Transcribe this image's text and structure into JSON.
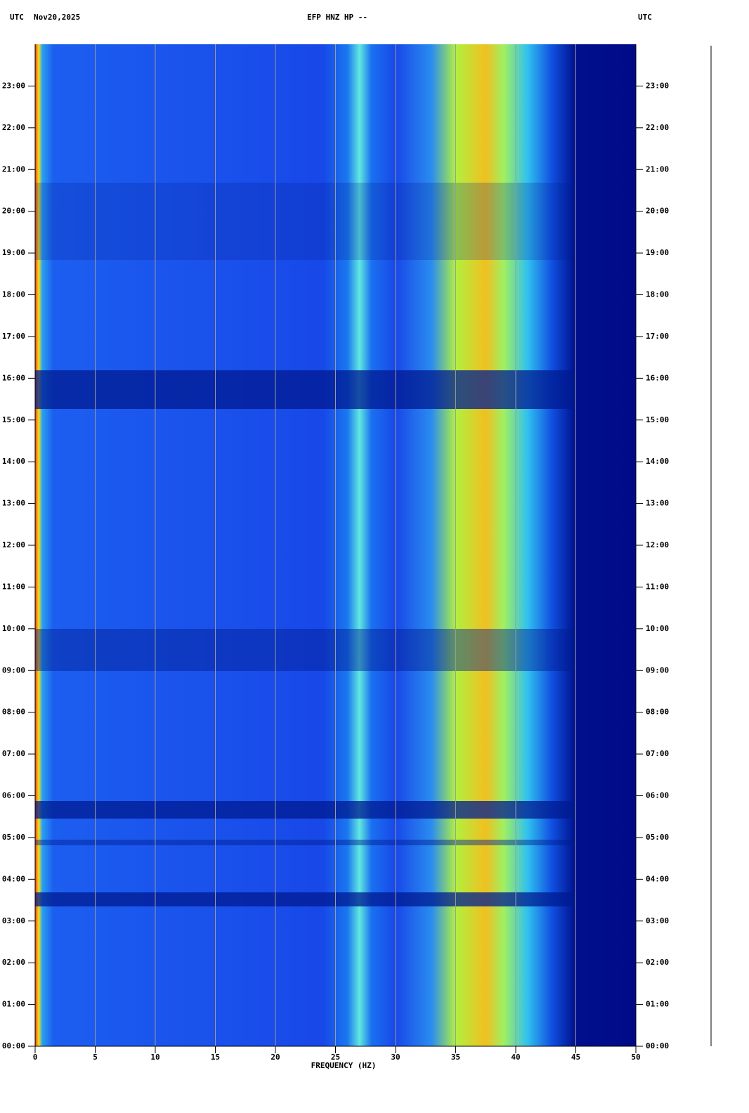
{
  "chart_data": {
    "type": "spectrogram",
    "title": "EFP HNZ HP --",
    "timezone_left": "UTC",
    "date": "Nov20,2025",
    "timezone_right": "UTC",
    "x_label": "FREQUENCY (HZ)",
    "xlim": [
      0,
      50
    ],
    "xticks": [
      0,
      5,
      10,
      15,
      20,
      25,
      30,
      35,
      40,
      45,
      50
    ],
    "ylim": [
      0,
      24
    ],
    "yticks": [
      {
        "value": 0,
        "label": "00:00"
      },
      {
        "value": 1,
        "label": "01:00"
      },
      {
        "value": 2,
        "label": "02:00"
      },
      {
        "value": 3,
        "label": "03:00"
      },
      {
        "value": 4,
        "label": "04:00"
      },
      {
        "value": 5,
        "label": "05:00"
      },
      {
        "value": 6,
        "label": "06:00"
      },
      {
        "value": 7,
        "label": "07:00"
      },
      {
        "value": 8,
        "label": "08:00"
      },
      {
        "value": 9,
        "label": "09:00"
      },
      {
        "value": 10,
        "label": "10:00"
      },
      {
        "value": 11,
        "label": "11:00"
      },
      {
        "value": 12,
        "label": "12:00"
      },
      {
        "value": 13,
        "label": "13:00"
      },
      {
        "value": 14,
        "label": "14:00"
      },
      {
        "value": 15,
        "label": "15:00"
      },
      {
        "value": 16,
        "label": "16:00"
      },
      {
        "value": 17,
        "label": "17:00"
      },
      {
        "value": 18,
        "label": "18:00"
      },
      {
        "value": 19,
        "label": "19:00"
      },
      {
        "value": 20,
        "label": "20:00"
      },
      {
        "value": 21,
        "label": "21:00"
      },
      {
        "value": 22,
        "label": "22:00"
      },
      {
        "value": 23,
        "label": "23:00"
      }
    ],
    "grid": true
  }
}
